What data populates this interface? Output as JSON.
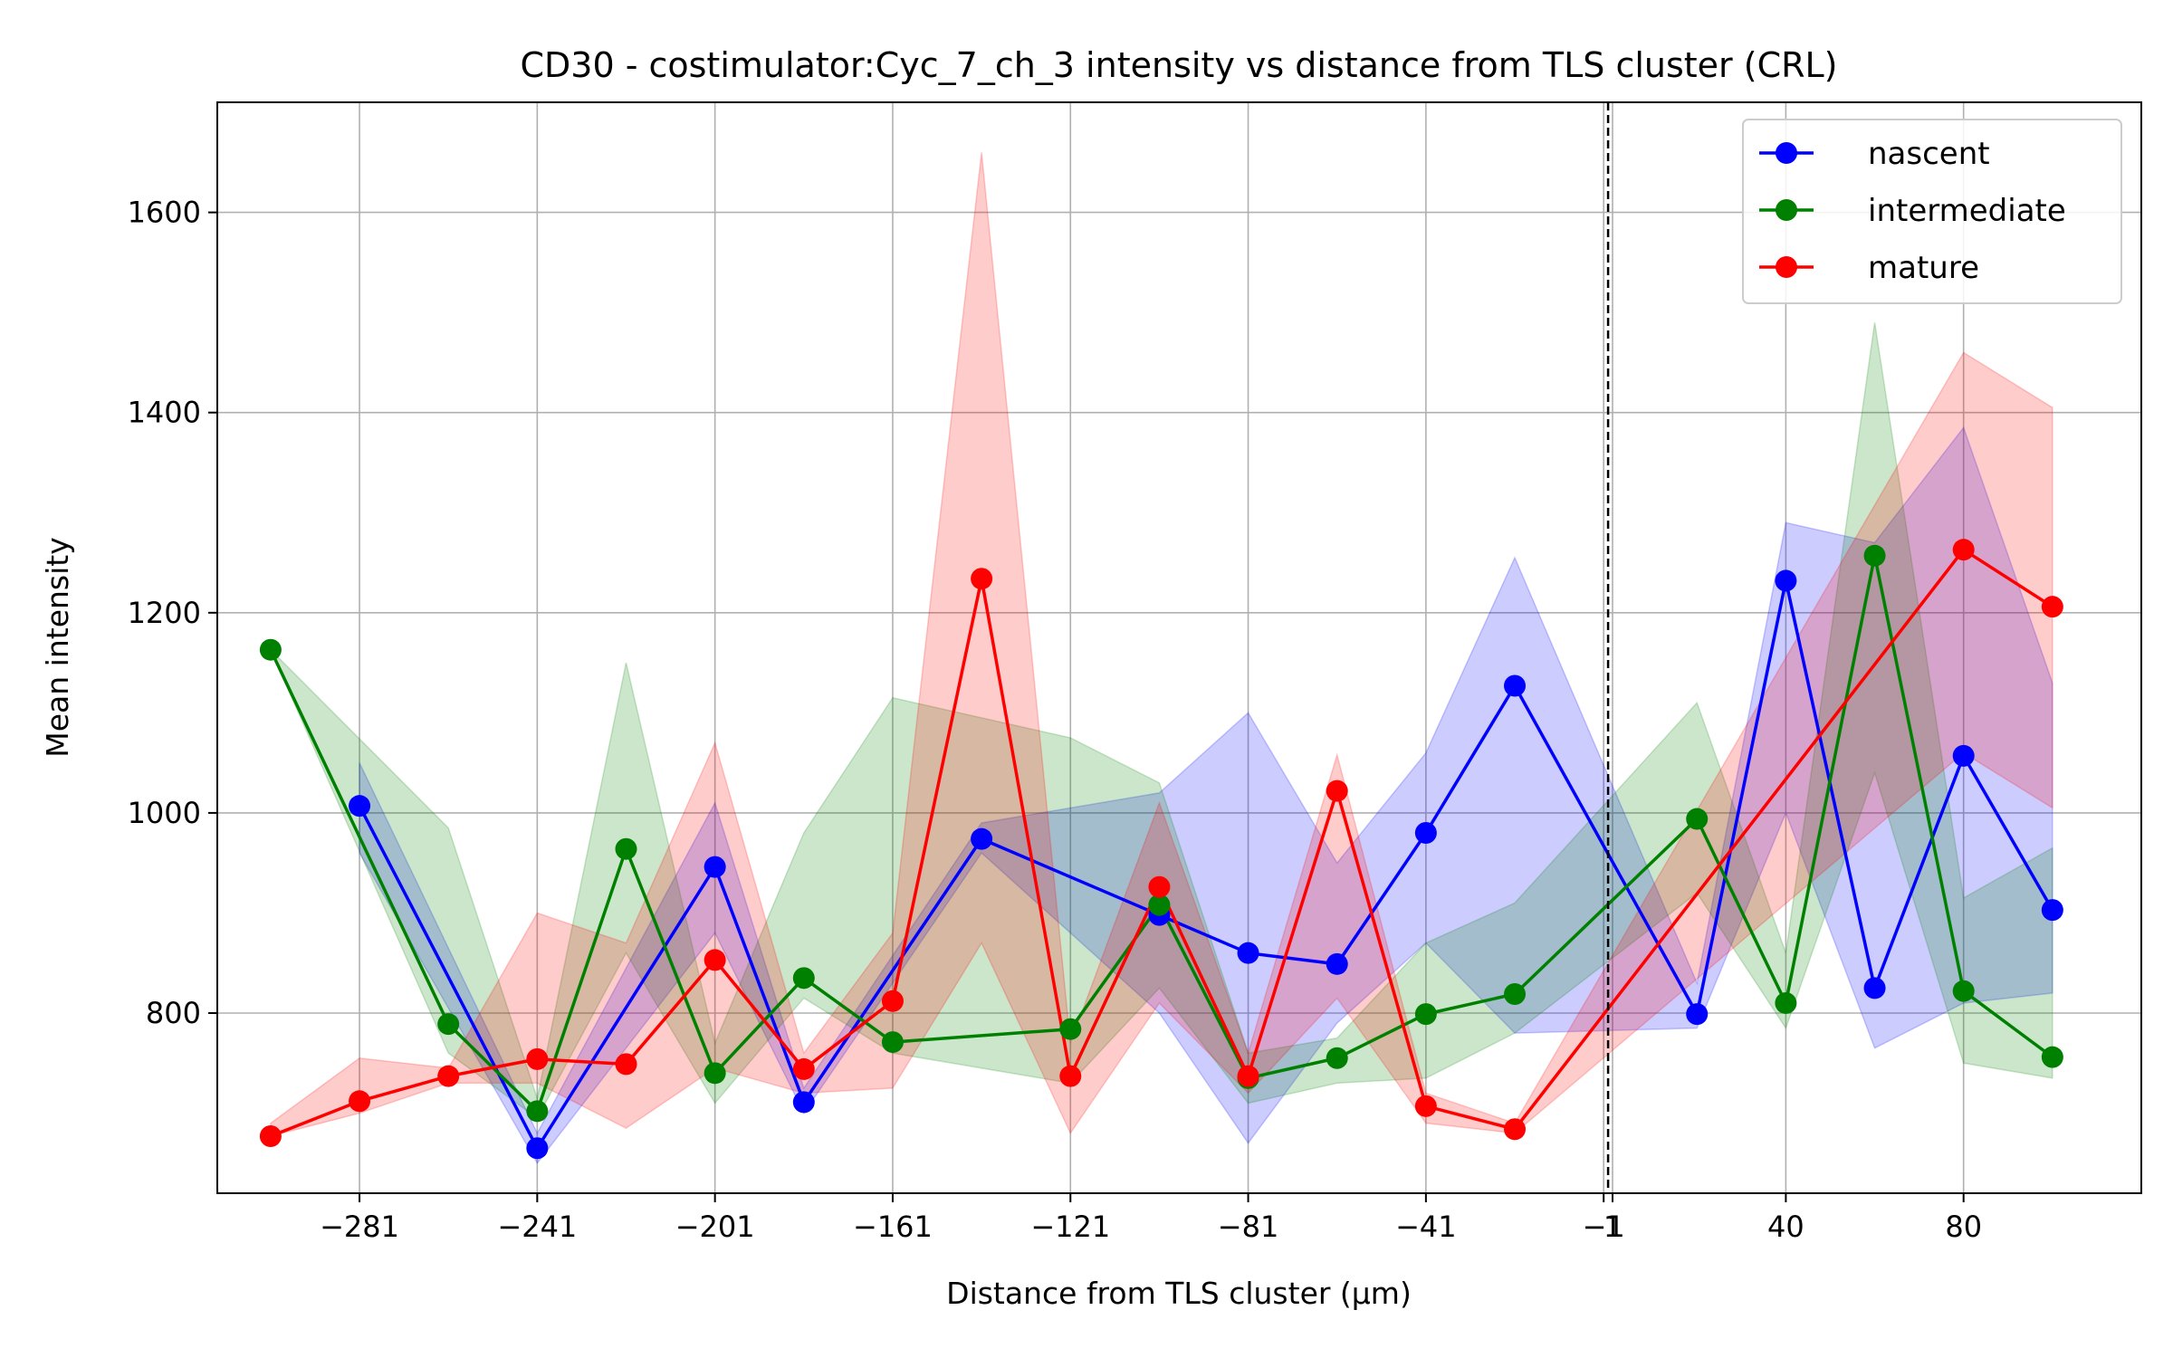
{
  "chart_data": {
    "type": "line",
    "title": "CD30 - costimulator:Cyc_7_ch_3 intensity vs distance from TLS cluster (CRL)",
    "xlabel": "Distance from TLS cluster (μm)",
    "ylabel": "Mean intensity",
    "xlim": [
      -313,
      120
    ],
    "ylim": [
      620,
      1710
    ],
    "x_ticks": [
      -281,
      -241,
      -201,
      -161,
      -121,
      -81,
      -41,
      -1,
      1,
      40,
      80
    ],
    "x_tick_labels": [
      "−281",
      "−241",
      "−201",
      "−161",
      "−121",
      "−81",
      "−41",
      "−1",
      "1",
      "40",
      "80"
    ],
    "y_ticks": [
      800,
      1000,
      1200,
      1400,
      1600
    ],
    "y_tick_labels": [
      "800",
      "1000",
      "1200",
      "1400",
      "1600"
    ],
    "grid": true,
    "legend_position": "top-right",
    "vline_x": 0,
    "series": [
      {
        "name": "nascent",
        "color": "#0000ff",
        "x": [
          -281,
          -241,
          -201,
          -181,
          -141,
          -101,
          -81,
          -61,
          -41,
          -21,
          20,
          40,
          60,
          80,
          100
        ],
        "y": [
          1007,
          665,
          946,
          711,
          974,
          898,
          860,
          849,
          980,
          1127,
          799,
          1232,
          825,
          1057,
          903
        ],
        "lower": [
          960,
          650,
          880,
          700,
          960,
          800,
          670,
          790,
          870,
          780,
          785,
          1000,
          765,
          810,
          820
        ],
        "upper": [
          1050,
          680,
          1010,
          725,
          990,
          1020,
          1100,
          950,
          1060,
          1255,
          830,
          1290,
          1270,
          1385,
          1130
        ]
      },
      {
        "name": "intermediate",
        "color": "#008000",
        "x": [
          -301,
          -261,
          -241,
          -221,
          -201,
          -181,
          -161,
          -121,
          -101,
          -81,
          -61,
          -41,
          -21,
          20,
          40,
          60,
          80,
          100
        ],
        "y": [
          1163,
          789,
          702,
          964,
          740,
          835,
          771,
          784,
          908,
          735,
          755,
          799,
          819,
          994,
          810,
          1257,
          822,
          756
        ],
        "lower": [
          1163,
          760,
          695,
          860,
          710,
          815,
          760,
          730,
          825,
          710,
          730,
          735,
          780,
          920,
          785,
          1040,
          750,
          735
        ],
        "upper": [
          1163,
          985,
          715,
          1150,
          770,
          980,
          1115,
          1075,
          1030,
          760,
          775,
          870,
          910,
          1110,
          860,
          1490,
          915,
          965
        ]
      },
      {
        "name": "mature",
        "color": "#ff0000",
        "x": [
          -301,
          -281,
          -261,
          -241,
          -221,
          -201,
          -181,
          -161,
          -141,
          -121,
          -101,
          -81,
          -61,
          -41,
          -21,
          80,
          100
        ],
        "y": [
          677,
          712,
          737,
          754,
          749,
          853,
          744,
          812,
          1234,
          737,
          926,
          737,
          1022,
          707,
          684,
          1263,
          1206
        ],
        "lower": [
          677,
          700,
          730,
          730,
          685,
          745,
          720,
          725,
          870,
          680,
          810,
          720,
          815,
          690,
          680,
          1060,
          1005
        ],
        "upper": [
          690,
          755,
          745,
          900,
          870,
          1070,
          760,
          880,
          1660,
          770,
          1010,
          760,
          1058,
          720,
          690,
          1460,
          1405
        ]
      }
    ]
  }
}
